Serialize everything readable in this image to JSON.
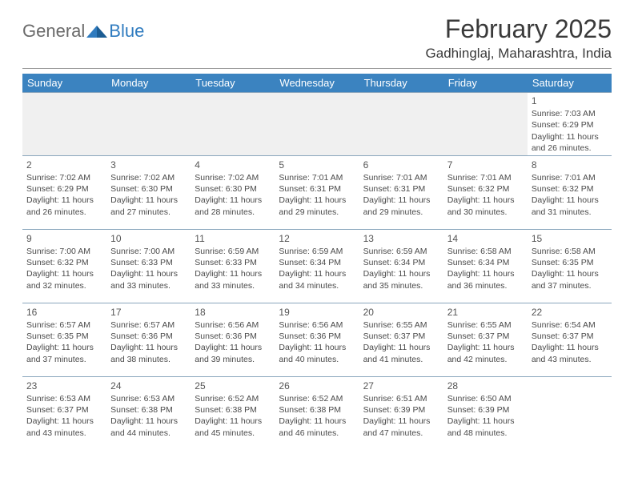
{
  "logo": {
    "general": "General",
    "blue": "Blue",
    "icon_color": "#2f7bbf"
  },
  "title": "February 2025",
  "location": "Gadhinglaj, Maharashtra, India",
  "colors": {
    "header_bg": "#3b83c0",
    "header_fg": "#ffffff",
    "row_border": "#8aa6bd",
    "empty_bg": "#f0f0f0"
  },
  "day_headers": [
    "Sunday",
    "Monday",
    "Tuesday",
    "Wednesday",
    "Thursday",
    "Friday",
    "Saturday"
  ],
  "weeks": [
    [
      null,
      null,
      null,
      null,
      null,
      null,
      {
        "n": "1",
        "sr": "7:03 AM",
        "ss": "6:29 PM",
        "dl": "11 hours and 26 minutes."
      }
    ],
    [
      {
        "n": "2",
        "sr": "7:02 AM",
        "ss": "6:29 PM",
        "dl": "11 hours and 26 minutes."
      },
      {
        "n": "3",
        "sr": "7:02 AM",
        "ss": "6:30 PM",
        "dl": "11 hours and 27 minutes."
      },
      {
        "n": "4",
        "sr": "7:02 AM",
        "ss": "6:30 PM",
        "dl": "11 hours and 28 minutes."
      },
      {
        "n": "5",
        "sr": "7:01 AM",
        "ss": "6:31 PM",
        "dl": "11 hours and 29 minutes."
      },
      {
        "n": "6",
        "sr": "7:01 AM",
        "ss": "6:31 PM",
        "dl": "11 hours and 29 minutes."
      },
      {
        "n": "7",
        "sr": "7:01 AM",
        "ss": "6:32 PM",
        "dl": "11 hours and 30 minutes."
      },
      {
        "n": "8",
        "sr": "7:01 AM",
        "ss": "6:32 PM",
        "dl": "11 hours and 31 minutes."
      }
    ],
    [
      {
        "n": "9",
        "sr": "7:00 AM",
        "ss": "6:32 PM",
        "dl": "11 hours and 32 minutes."
      },
      {
        "n": "10",
        "sr": "7:00 AM",
        "ss": "6:33 PM",
        "dl": "11 hours and 33 minutes."
      },
      {
        "n": "11",
        "sr": "6:59 AM",
        "ss": "6:33 PM",
        "dl": "11 hours and 33 minutes."
      },
      {
        "n": "12",
        "sr": "6:59 AM",
        "ss": "6:34 PM",
        "dl": "11 hours and 34 minutes."
      },
      {
        "n": "13",
        "sr": "6:59 AM",
        "ss": "6:34 PM",
        "dl": "11 hours and 35 minutes."
      },
      {
        "n": "14",
        "sr": "6:58 AM",
        "ss": "6:34 PM",
        "dl": "11 hours and 36 minutes."
      },
      {
        "n": "15",
        "sr": "6:58 AM",
        "ss": "6:35 PM",
        "dl": "11 hours and 37 minutes."
      }
    ],
    [
      {
        "n": "16",
        "sr": "6:57 AM",
        "ss": "6:35 PM",
        "dl": "11 hours and 37 minutes."
      },
      {
        "n": "17",
        "sr": "6:57 AM",
        "ss": "6:36 PM",
        "dl": "11 hours and 38 minutes."
      },
      {
        "n": "18",
        "sr": "6:56 AM",
        "ss": "6:36 PM",
        "dl": "11 hours and 39 minutes."
      },
      {
        "n": "19",
        "sr": "6:56 AM",
        "ss": "6:36 PM",
        "dl": "11 hours and 40 minutes."
      },
      {
        "n": "20",
        "sr": "6:55 AM",
        "ss": "6:37 PM",
        "dl": "11 hours and 41 minutes."
      },
      {
        "n": "21",
        "sr": "6:55 AM",
        "ss": "6:37 PM",
        "dl": "11 hours and 42 minutes."
      },
      {
        "n": "22",
        "sr": "6:54 AM",
        "ss": "6:37 PM",
        "dl": "11 hours and 43 minutes."
      }
    ],
    [
      {
        "n": "23",
        "sr": "6:53 AM",
        "ss": "6:37 PM",
        "dl": "11 hours and 43 minutes."
      },
      {
        "n": "24",
        "sr": "6:53 AM",
        "ss": "6:38 PM",
        "dl": "11 hours and 44 minutes."
      },
      {
        "n": "25",
        "sr": "6:52 AM",
        "ss": "6:38 PM",
        "dl": "11 hours and 45 minutes."
      },
      {
        "n": "26",
        "sr": "6:52 AM",
        "ss": "6:38 PM",
        "dl": "11 hours and 46 minutes."
      },
      {
        "n": "27",
        "sr": "6:51 AM",
        "ss": "6:39 PM",
        "dl": "11 hours and 47 minutes."
      },
      {
        "n": "28",
        "sr": "6:50 AM",
        "ss": "6:39 PM",
        "dl": "11 hours and 48 minutes."
      },
      null
    ]
  ],
  "labels": {
    "sunrise": "Sunrise:",
    "sunset": "Sunset:",
    "daylight": "Daylight:"
  }
}
